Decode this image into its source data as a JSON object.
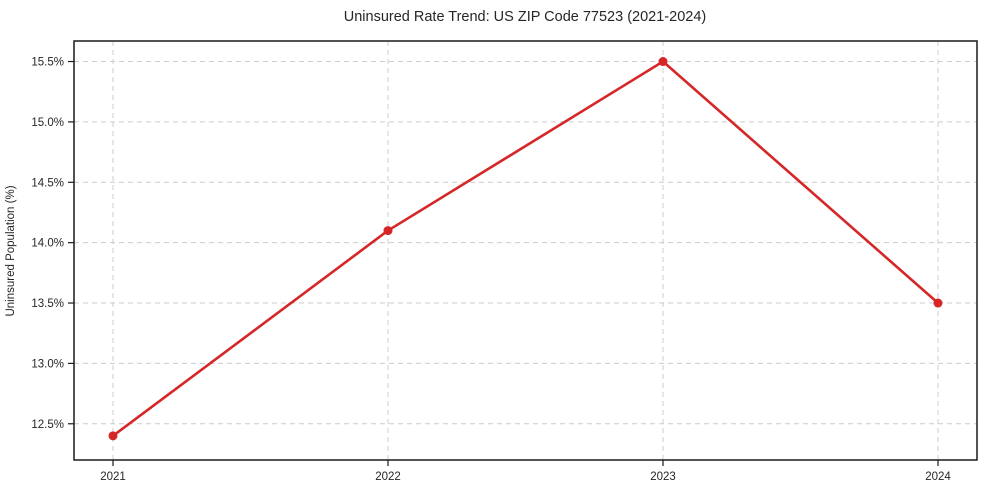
{
  "page": {
    "background": "#ffffff"
  },
  "chart_data": {
    "type": "line",
    "title": "Uninsured Rate Trend: US ZIP Code 77523 (2021-2024)",
    "xlabel": "",
    "ylabel": "Uninsured Population (%)",
    "categories": [
      "2021",
      "2022",
      "2023",
      "2024"
    ],
    "series": [
      {
        "name": "Uninsured Population (%)",
        "values": [
          12.4,
          14.1,
          15.5,
          13.5
        ]
      }
    ],
    "yticks": [
      12.5,
      13.0,
      13.5,
      14.0,
      14.5,
      15.0,
      15.5
    ],
    "ytick_labels": [
      "12.5%",
      "13.0%",
      "13.5%",
      "14.0%",
      "14.5%",
      "15.0%",
      "15.5%"
    ],
    "ylim": [
      12.2,
      15.67
    ],
    "grid": true,
    "legend_position": "none",
    "line_color": "#d62728",
    "marker": "circle",
    "grid_color": "#cccccc",
    "axis_color": "#1a1a1a",
    "text_color": "#262626"
  }
}
